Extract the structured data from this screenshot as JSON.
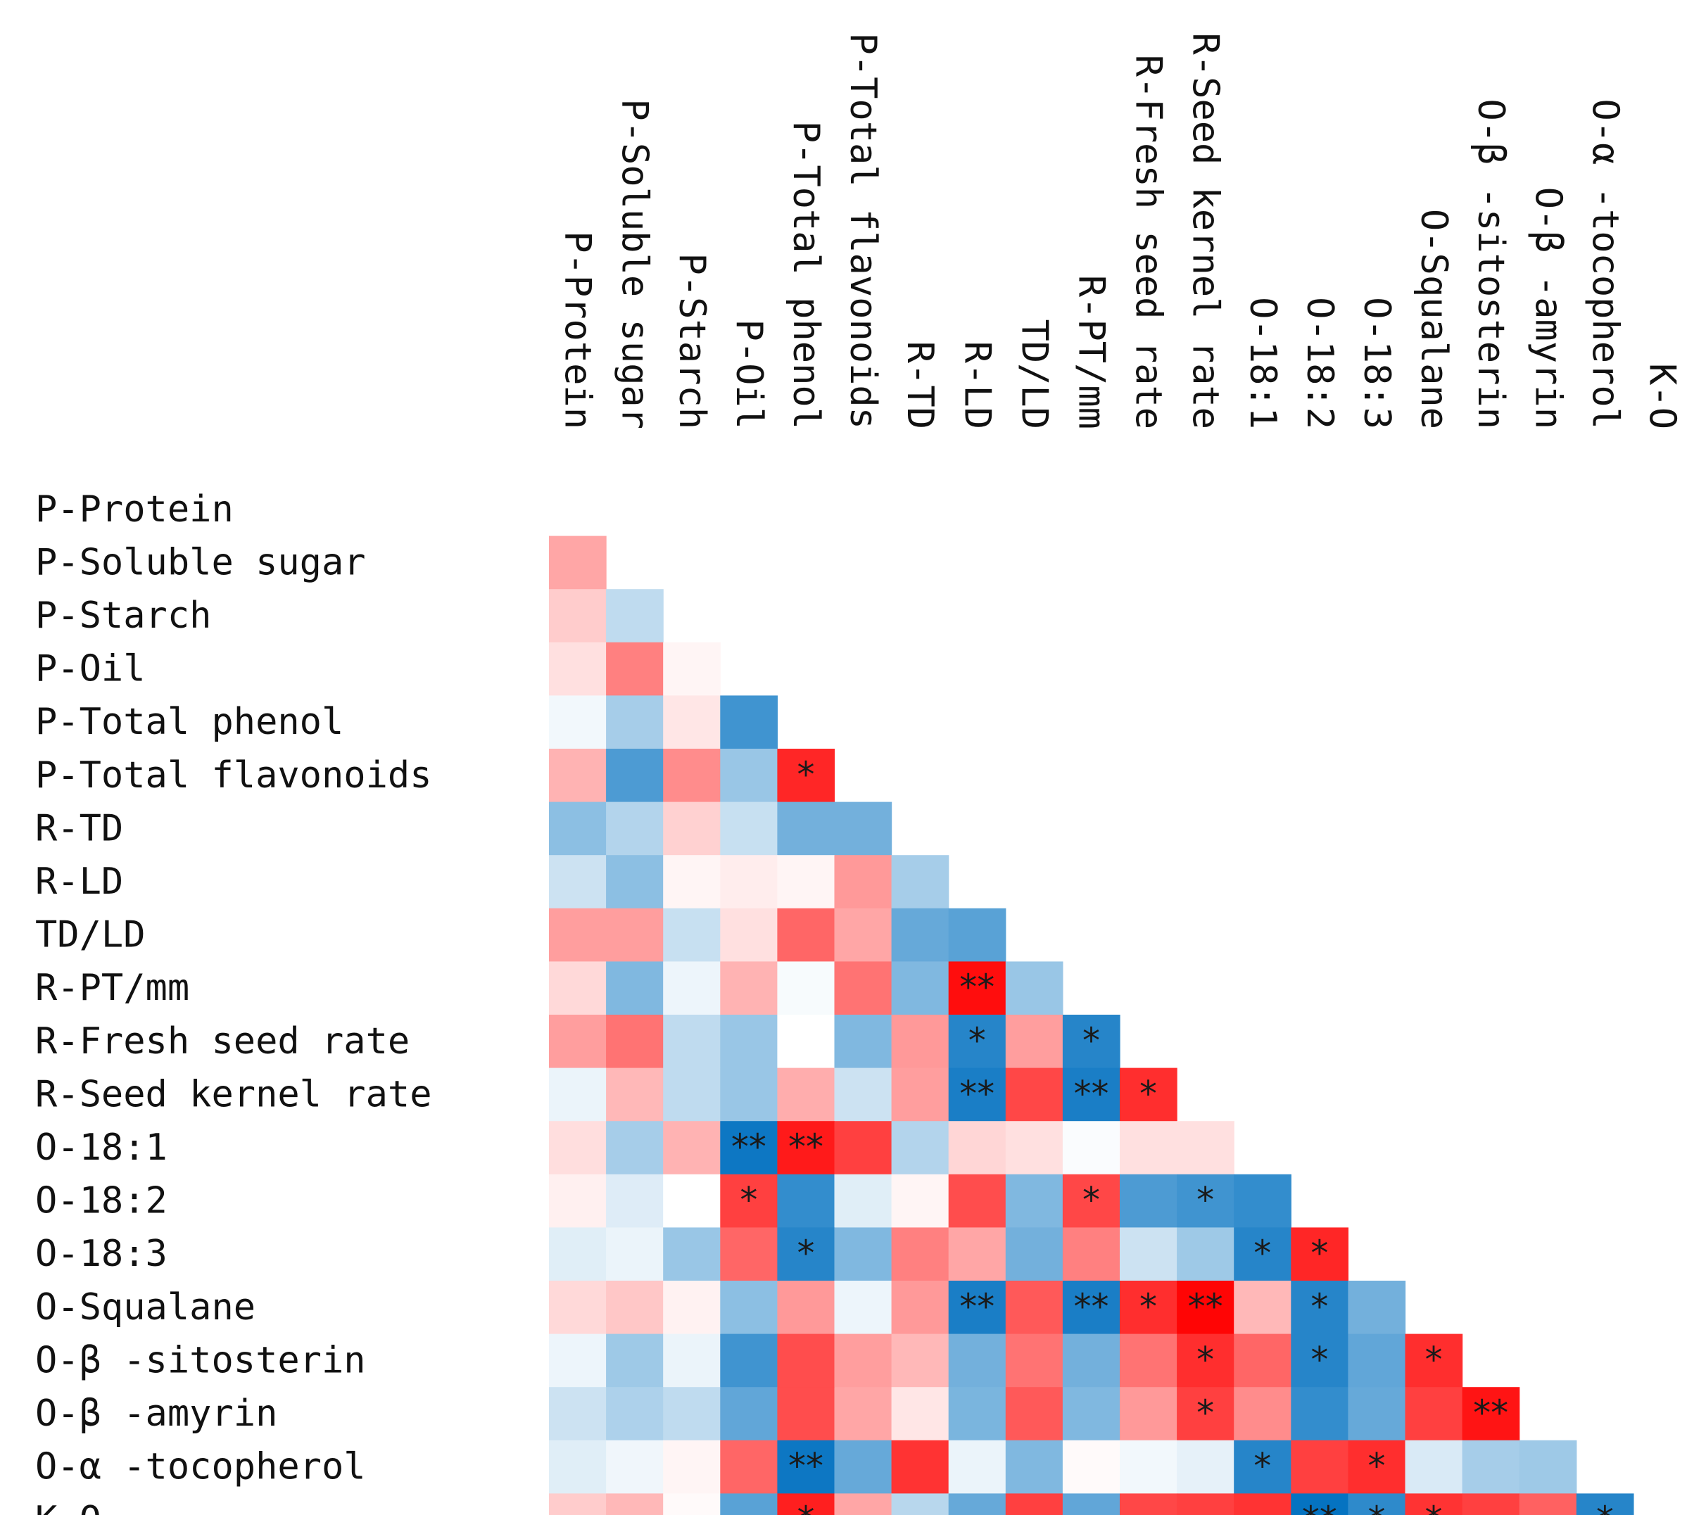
{
  "chart_data": {
    "type": "heatmap",
    "title": "",
    "shape": "lower-triangle",
    "labels": [
      "P-Protein",
      "P-Soluble sugar",
      "P-Starch",
      "P-Oil",
      "P-Total phenol",
      "P-Total flavonoids",
      "R-TD",
      "R-LD",
      "TD/LD",
      "R-PT/mm",
      "R-Fresh seed rate",
      "R-Seed kernel rate",
      "O-18:1",
      "O-18:2",
      "O-18:3",
      "O-Squalane",
      "O-β -sitosterin",
      "O-β -amyrin",
      "O-α -tocopherol",
      "K-O"
    ],
    "row_labels": [
      "P-Protein",
      "P-Soluble sugar",
      "P-Starch",
      "P-Oil",
      "P-Total phenol",
      "P-Total flavonoids",
      "R-TD",
      "R-LD",
      "TD/LD",
      "R-PT/mm",
      "R-Fresh seed rate",
      "R-Seed kernel rate",
      "O-18:1",
      "O-18:2",
      "O-18:3",
      "O-Squalane",
      "O-β -sitosterin",
      "O-β -amyrin",
      "O-α -tocopherol",
      "K-O"
    ],
    "col_labels": [
      "P-Protein",
      "P-Soluble sugar",
      "P-Starch",
      "P-Oil",
      "P-Total phenol",
      "P-Total flavonoids",
      "R-TD",
      "R-LD",
      "TD/LD",
      "R-PT/mm",
      "R-Fresh seed rate",
      "R-Seed kernel rate",
      "O-18:1",
      "O-18:2",
      "O-18:3",
      "O-Squalane",
      "O-β -sitosterin",
      "O-β -amyrin",
      "O-α -tocopherol",
      "K-O"
    ],
    "color_scale": {
      "negative": "#0070c0",
      "zero": "#ffffff",
      "positive": "#ff0000",
      "range": [
        -1,
        1
      ]
    },
    "values": [
      [],
      [
        0.35
      ],
      [
        0.2,
        -0.25
      ],
      [
        0.12,
        0.5,
        0.04
      ],
      [
        -0.05,
        -0.35,
        0.1,
        -0.75
      ],
      [
        0.3,
        -0.7,
        0.45,
        -0.4,
        0.85
      ],
      [
        -0.45,
        -0.3,
        0.18,
        -0.22,
        -0.55,
        -0.55
      ],
      [
        -0.2,
        -0.45,
        0.04,
        0.07,
        0.04,
        0.4,
        -0.35
      ],
      [
        0.38,
        0.38,
        -0.22,
        0.12,
        0.6,
        0.35,
        -0.6,
        -0.65
      ],
      [
        0.15,
        -0.5,
        -0.07,
        0.3,
        -0.03,
        0.55,
        -0.5,
        0.95,
        -0.4
      ],
      [
        0.38,
        0.55,
        -0.25,
        -0.4,
        0.0,
        -0.5,
        0.4,
        -0.85,
        0.38,
        -0.85
      ],
      [
        -0.08,
        0.28,
        -0.25,
        -0.4,
        0.32,
        -0.2,
        0.38,
        -0.9,
        0.72,
        -0.9,
        0.82
      ],
      [
        0.13,
        -0.35,
        0.3,
        -0.95,
        0.9,
        0.75,
        -0.3,
        0.16,
        0.12,
        -0.02,
        0.12,
        0.12
      ],
      [
        0.06,
        -0.13,
        0.0,
        0.75,
        -0.8,
        -0.12,
        0.04,
        0.7,
        -0.5,
        0.72,
        -0.7,
        -0.75,
        -0.8
      ],
      [
        -0.12,
        -0.08,
        -0.4,
        0.6,
        -0.85,
        -0.5,
        0.5,
        0.35,
        -0.55,
        0.5,
        -0.2,
        -0.38,
        -0.85,
        0.85
      ],
      [
        0.15,
        0.22,
        0.05,
        -0.45,
        0.4,
        -0.07,
        0.4,
        -0.9,
        0.65,
        -0.9,
        0.82,
        0.98,
        0.28,
        -0.85,
        -0.55
      ],
      [
        -0.07,
        -0.38,
        -0.08,
        -0.75,
        0.7,
        0.38,
        0.28,
        -0.55,
        0.55,
        -0.55,
        0.55,
        0.82,
        0.6,
        -0.85,
        -0.62,
        0.82
      ],
      [
        -0.2,
        -0.32,
        -0.25,
        -0.62,
        0.7,
        0.35,
        0.1,
        -0.52,
        0.65,
        -0.5,
        0.4,
        0.75,
        0.45,
        -0.8,
        -0.6,
        0.75,
        0.92
      ],
      [
        -0.12,
        -0.06,
        0.04,
        0.6,
        -0.95,
        -0.6,
        0.8,
        -0.08,
        -0.5,
        0.02,
        -0.05,
        -0.1,
        -0.85,
        0.75,
        0.82,
        -0.15,
        -0.35,
        -0.38
      ],
      [
        0.2,
        0.28,
        0.02,
        -0.65,
        0.88,
        0.35,
        -0.28,
        -0.6,
        0.75,
        -0.62,
        0.72,
        0.75,
        0.8,
        -0.98,
        -0.82,
        0.8,
        0.75,
        0.62,
        -0.85
      ]
    ],
    "significance": [
      [],
      [
        ""
      ],
      [
        "",
        ""
      ],
      [
        "",
        "",
        ""
      ],
      [
        "",
        "",
        "",
        ""
      ],
      [
        "",
        "",
        "",
        "",
        "*"
      ],
      [
        "",
        "",
        "",
        "",
        "",
        ""
      ],
      [
        "",
        "",
        "",
        "",
        "",
        "",
        ""
      ],
      [
        "",
        "",
        "",
        "",
        "",
        "",
        "",
        ""
      ],
      [
        "",
        "",
        "",
        "",
        "",
        "",
        "",
        "**",
        ""
      ],
      [
        "",
        "",
        "",
        "",
        "",
        "",
        "",
        "*",
        "",
        "*"
      ],
      [
        "",
        "",
        "",
        "",
        "",
        "",
        "",
        "**",
        "",
        "**",
        "*"
      ],
      [
        "",
        "",
        "",
        "**",
        "**",
        "",
        "",
        "",
        "",
        "",
        "",
        ""
      ],
      [
        "",
        "",
        "",
        "*",
        "",
        "",
        "",
        "",
        "",
        "*",
        "",
        "*",
        ""
      ],
      [
        "",
        "",
        "",
        "",
        "*",
        "",
        "",
        "",
        "",
        "",
        "",
        "",
        "*",
        "*"
      ],
      [
        "",
        "",
        "",
        "",
        "",
        "",
        "",
        "**",
        "",
        "**",
        "*",
        "**",
        "",
        "*",
        ""
      ],
      [
        "",
        "",
        "",
        "",
        "",
        "",
        "",
        "",
        "",
        "",
        "",
        "*",
        "",
        "*",
        "",
        "*"
      ],
      [
        "",
        "",
        "",
        "",
        "",
        "",
        "",
        "",
        "",
        "",
        "",
        "*",
        "",
        "",
        "",
        "",
        "**"
      ],
      [
        "",
        "",
        "",
        "",
        "**",
        "",
        "",
        "",
        "",
        "",
        "",
        "",
        "*",
        "",
        "*",
        "",
        "",
        ""
      ],
      [
        "",
        "",
        "",
        "",
        "*",
        "",
        "",
        "",
        "",
        "",
        "",
        "",
        "",
        "**",
        "*",
        "*",
        "",
        "",
        "*"
      ]
    ]
  }
}
